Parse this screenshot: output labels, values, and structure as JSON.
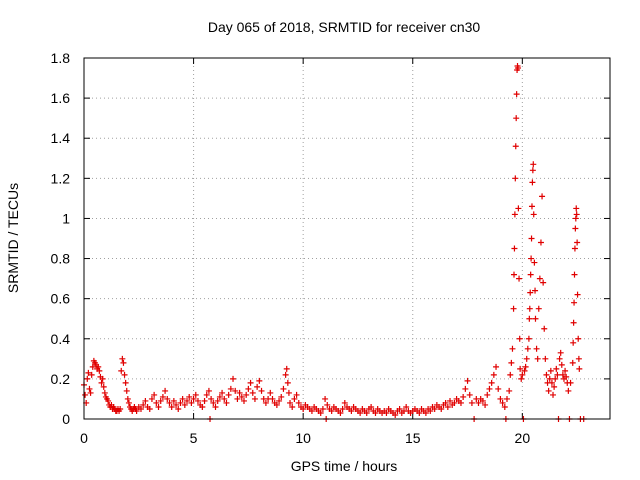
{
  "chart_data": {
    "type": "scatter",
    "title": "Day 065 of 2018, SRMTID for receiver cn30",
    "xlabel": "GPS time / hours",
    "ylabel": "SRMTID / TECUs",
    "xlim": [
      0,
      24
    ],
    "ylim": [
      0,
      1.8
    ],
    "xticks": [
      0,
      5,
      10,
      15,
      20
    ],
    "xtick_labels": [
      "0",
      "5",
      "10",
      "15",
      "20"
    ],
    "yticks": [
      0,
      0.2,
      0.4,
      0.6,
      0.8,
      1,
      1.2,
      1.4,
      1.6,
      1.8
    ],
    "ytick_labels": [
      "0",
      "0.2",
      "0.4",
      "0.6",
      "0.8",
      "1",
      "1.2",
      "1.4",
      "1.6",
      "1.8"
    ],
    "grid": true,
    "marker": "+",
    "marker_color": "#e00000",
    "series": [
      {
        "name": "SRMTID",
        "points": [
          [
            0.0,
            0.17
          ],
          [
            0.05,
            0.12
          ],
          [
            0.1,
            0.08
          ],
          [
            0.15,
            0.2
          ],
          [
            0.2,
            0.23
          ],
          [
            0.25,
            0.15
          ],
          [
            0.3,
            0.13
          ],
          [
            0.35,
            0.22
          ],
          [
            0.4,
            0.26
          ],
          [
            0.45,
            0.29
          ],
          [
            0.5,
            0.28
          ],
          [
            0.55,
            0.27
          ],
          [
            0.6,
            0.25
          ],
          [
            0.65,
            0.26
          ],
          [
            0.7,
            0.24
          ],
          [
            0.75,
            0.21
          ],
          [
            0.8,
            0.18
          ],
          [
            0.85,
            0.2
          ],
          [
            0.9,
            0.16
          ],
          [
            0.95,
            0.13
          ],
          [
            1.0,
            0.11
          ],
          [
            1.05,
            0.1
          ],
          [
            1.1,
            0.09
          ],
          [
            1.15,
            0.07
          ],
          [
            1.2,
            0.06
          ],
          [
            1.25,
            0.07
          ],
          [
            1.3,
            0.05
          ],
          [
            1.35,
            0.06
          ],
          [
            1.4,
            0.05
          ],
          [
            1.45,
            0.04
          ],
          [
            1.5,
            0.04
          ],
          [
            1.55,
            0.05
          ],
          [
            1.6,
            0.04
          ],
          [
            1.65,
            0.05
          ],
          [
            1.7,
            0.24
          ],
          [
            1.75,
            0.3
          ],
          [
            1.8,
            0.28
          ],
          [
            1.85,
            0.22
          ],
          [
            1.9,
            0.18
          ],
          [
            1.95,
            0.14
          ],
          [
            2.0,
            0.1
          ],
          [
            2.05,
            0.08
          ],
          [
            2.1,
            0.06
          ],
          [
            2.15,
            0.05
          ],
          [
            2.2,
            0.04
          ],
          [
            2.25,
            0.05
          ],
          [
            2.3,
            0.06
          ],
          [
            2.35,
            0.05
          ],
          [
            2.4,
            0.04
          ],
          [
            2.5,
            0.06
          ],
          [
            2.6,
            0.05
          ],
          [
            2.7,
            0.07
          ],
          [
            2.8,
            0.09
          ],
          [
            2.9,
            0.06
          ],
          [
            3.0,
            0.05
          ],
          [
            3.1,
            0.1
          ],
          [
            3.2,
            0.12
          ],
          [
            3.3,
            0.08
          ],
          [
            3.4,
            0.06
          ],
          [
            3.5,
            0.09
          ],
          [
            3.6,
            0.11
          ],
          [
            3.7,
            0.14
          ],
          [
            3.8,
            0.1
          ],
          [
            3.9,
            0.08
          ],
          [
            4.0,
            0.06
          ],
          [
            4.1,
            0.09
          ],
          [
            4.2,
            0.07
          ],
          [
            4.3,
            0.05
          ],
          [
            4.4,
            0.08
          ],
          [
            4.5,
            0.1
          ],
          [
            4.6,
            0.07
          ],
          [
            4.7,
            0.09
          ],
          [
            4.8,
            0.11
          ],
          [
            4.9,
            0.08
          ],
          [
            5.0,
            0.1
          ],
          [
            5.1,
            0.12
          ],
          [
            5.2,
            0.09
          ],
          [
            5.3,
            0.07
          ],
          [
            5.4,
            0.06
          ],
          [
            5.5,
            0.09
          ],
          [
            5.6,
            0.12
          ],
          [
            5.7,
            0.14
          ],
          [
            5.75,
            0.0
          ],
          [
            5.8,
            0.1
          ],
          [
            5.9,
            0.08
          ],
          [
            6.0,
            0.06
          ],
          [
            6.1,
            0.09
          ],
          [
            6.2,
            0.11
          ],
          [
            6.3,
            0.13
          ],
          [
            6.4,
            0.1
          ],
          [
            6.5,
            0.08
          ],
          [
            6.6,
            0.12
          ],
          [
            6.7,
            0.15
          ],
          [
            6.8,
            0.2
          ],
          [
            6.9,
            0.14
          ],
          [
            7.0,
            0.1
          ],
          [
            7.1,
            0.13
          ],
          [
            7.2,
            0.11
          ],
          [
            7.3,
            0.09
          ],
          [
            7.4,
            0.12
          ],
          [
            7.5,
            0.15
          ],
          [
            7.6,
            0.18
          ],
          [
            7.7,
            0.13
          ],
          [
            7.8,
            0.1
          ],
          [
            7.9,
            0.16
          ],
          [
            8.0,
            0.19
          ],
          [
            8.1,
            0.14
          ],
          [
            8.2,
            0.1
          ],
          [
            8.3,
            0.08
          ],
          [
            8.4,
            0.1
          ],
          [
            8.5,
            0.13
          ],
          [
            8.6,
            0.1
          ],
          [
            8.7,
            0.08
          ],
          [
            8.8,
            0.07
          ],
          [
            8.9,
            0.09
          ],
          [
            9.0,
            0.11
          ],
          [
            9.1,
            0.15
          ],
          [
            9.2,
            0.22
          ],
          [
            9.25,
            0.25
          ],
          [
            9.3,
            0.18
          ],
          [
            9.35,
            0.13
          ],
          [
            9.4,
            0.08
          ],
          [
            9.5,
            0.06
          ],
          [
            9.6,
            0.1
          ],
          [
            9.7,
            0.12
          ],
          [
            9.8,
            0.08
          ],
          [
            9.9,
            0.06
          ],
          [
            10.0,
            0.05
          ],
          [
            10.1,
            0.07
          ],
          [
            10.2,
            0.06
          ],
          [
            10.3,
            0.05
          ],
          [
            10.4,
            0.04
          ],
          [
            10.5,
            0.06
          ],
          [
            10.6,
            0.05
          ],
          [
            10.7,
            0.04
          ],
          [
            10.8,
            0.03
          ],
          [
            10.9,
            0.05
          ],
          [
            11.0,
            0.1
          ],
          [
            11.05,
            0.0
          ],
          [
            11.1,
            0.07
          ],
          [
            11.2,
            0.05
          ],
          [
            11.3,
            0.04
          ],
          [
            11.4,
            0.06
          ],
          [
            11.5,
            0.05
          ],
          [
            11.6,
            0.04
          ],
          [
            11.7,
            0.03
          ],
          [
            11.8,
            0.05
          ],
          [
            11.9,
            0.08
          ],
          [
            12.0,
            0.06
          ],
          [
            12.1,
            0.05
          ],
          [
            12.2,
            0.04
          ],
          [
            12.3,
            0.06
          ],
          [
            12.4,
            0.05
          ],
          [
            12.5,
            0.04
          ],
          [
            12.6,
            0.03
          ],
          [
            12.7,
            0.05
          ],
          [
            12.8,
            0.04
          ],
          [
            12.9,
            0.03
          ],
          [
            13.0,
            0.05
          ],
          [
            13.1,
            0.06
          ],
          [
            13.2,
            0.04
          ],
          [
            13.3,
            0.03
          ],
          [
            13.4,
            0.05
          ],
          [
            13.5,
            0.04
          ],
          [
            13.6,
            0.03
          ],
          [
            13.7,
            0.04
          ],
          [
            13.8,
            0.03
          ],
          [
            13.9,
            0.05
          ],
          [
            14.0,
            0.04
          ],
          [
            14.1,
            0.03
          ],
          [
            14.2,
            0.02
          ],
          [
            14.3,
            0.04
          ],
          [
            14.4,
            0.05
          ],
          [
            14.5,
            0.03
          ],
          [
            14.6,
            0.04
          ],
          [
            14.7,
            0.06
          ],
          [
            14.8,
            0.04
          ],
          [
            14.9,
            0.03
          ],
          [
            15.0,
            0.04
          ],
          [
            15.1,
            0.05
          ],
          [
            15.2,
            0.04
          ],
          [
            15.3,
            0.03
          ],
          [
            15.4,
            0.05
          ],
          [
            15.5,
            0.04
          ],
          [
            15.6,
            0.03
          ],
          [
            15.7,
            0.05
          ],
          [
            15.8,
            0.04
          ],
          [
            15.9,
            0.06
          ],
          [
            16.0,
            0.05
          ],
          [
            16.1,
            0.07
          ],
          [
            16.2,
            0.06
          ],
          [
            16.3,
            0.05
          ],
          [
            16.4,
            0.07
          ],
          [
            16.5,
            0.08
          ],
          [
            16.6,
            0.06
          ],
          [
            16.7,
            0.09
          ],
          [
            16.8,
            0.07
          ],
          [
            16.9,
            0.08
          ],
          [
            17.0,
            0.1
          ],
          [
            17.1,
            0.09
          ],
          [
            17.2,
            0.08
          ],
          [
            17.3,
            0.11
          ],
          [
            17.4,
            0.15
          ],
          [
            17.5,
            0.19
          ],
          [
            17.6,
            0.12
          ],
          [
            17.7,
            0.08
          ],
          [
            17.8,
            0.0
          ],
          [
            17.9,
            0.1
          ],
          [
            18.0,
            0.08
          ],
          [
            18.1,
            0.1
          ],
          [
            18.2,
            0.09
          ],
          [
            18.3,
            0.07
          ],
          [
            18.4,
            0.12
          ],
          [
            18.5,
            0.15
          ],
          [
            18.6,
            0.18
          ],
          [
            18.7,
            0.22
          ],
          [
            18.8,
            0.26
          ],
          [
            18.9,
            0.15
          ],
          [
            19.0,
            0.1
          ],
          [
            19.1,
            0.08
          ],
          [
            19.2,
            0.06
          ],
          [
            19.25,
            0.0
          ],
          [
            19.3,
            0.1
          ],
          [
            19.4,
            0.14
          ],
          [
            19.45,
            0.22
          ],
          [
            19.5,
            0.28
          ],
          [
            19.55,
            0.35
          ],
          [
            19.6,
            0.55
          ],
          [
            19.62,
            0.72
          ],
          [
            19.64,
            0.85
          ],
          [
            19.66,
            1.02
          ],
          [
            19.68,
            1.2
          ],
          [
            19.7,
            1.36
          ],
          [
            19.72,
            1.5
          ],
          [
            19.74,
            1.62
          ],
          [
            19.76,
            1.74
          ],
          [
            19.78,
            1.76
          ],
          [
            19.8,
            1.75
          ],
          [
            19.82,
            1.05
          ],
          [
            19.85,
            0.7
          ],
          [
            19.88,
            0.4
          ],
          [
            19.9,
            0.25
          ],
          [
            19.95,
            0.2
          ],
          [
            20.0,
            0.22
          ],
          [
            20.05,
            0.0
          ],
          [
            20.1,
            0.24
          ],
          [
            20.15,
            0.26
          ],
          [
            20.2,
            0.3
          ],
          [
            20.25,
            0.35
          ],
          [
            20.3,
            0.4
          ],
          [
            20.32,
            0.5
          ],
          [
            20.34,
            0.55
          ],
          [
            20.36,
            0.63
          ],
          [
            20.38,
            0.72
          ],
          [
            20.4,
            0.8
          ],
          [
            20.42,
            0.9
          ],
          [
            20.44,
            1.06
          ],
          [
            20.46,
            1.18
          ],
          [
            20.48,
            1.24
          ],
          [
            20.5,
            1.27
          ],
          [
            20.52,
            1.02
          ],
          [
            20.55,
            0.78
          ],
          [
            20.58,
            0.64
          ],
          [
            20.6,
            0.5
          ],
          [
            20.65,
            0.35
          ],
          [
            20.7,
            0.3
          ],
          [
            20.75,
            0.55
          ],
          [
            20.8,
            0.7
          ],
          [
            20.85,
            0.88
          ],
          [
            20.9,
            1.11
          ],
          [
            20.95,
            0.68
          ],
          [
            21.0,
            0.45
          ],
          [
            21.05,
            0.3
          ],
          [
            21.1,
            0.22
          ],
          [
            21.15,
            0.18
          ],
          [
            21.2,
            0.14
          ],
          [
            21.25,
            0.2
          ],
          [
            21.3,
            0.24
          ],
          [
            21.35,
            0.18
          ],
          [
            21.4,
            0.12
          ],
          [
            21.45,
            0.16
          ],
          [
            21.5,
            0.2
          ],
          [
            21.55,
            0.25
          ],
          [
            21.6,
            0.22
          ],
          [
            21.65,
            0.0
          ],
          [
            21.7,
            0.3
          ],
          [
            21.75,
            0.33
          ],
          [
            21.8,
            0.27
          ],
          [
            21.85,
            0.22
          ],
          [
            21.9,
            0.2
          ],
          [
            21.95,
            0.24
          ],
          [
            22.0,
            0.21
          ],
          [
            22.05,
            0.18
          ],
          [
            22.1,
            0.14
          ],
          [
            22.15,
            0.0
          ],
          [
            22.2,
            0.18
          ],
          [
            22.3,
            0.28
          ],
          [
            22.32,
            0.38
          ],
          [
            22.34,
            0.48
          ],
          [
            22.36,
            0.58
          ],
          [
            22.38,
            0.72
          ],
          [
            22.4,
            0.85
          ],
          [
            22.42,
            0.95
          ],
          [
            22.44,
            1.0
          ],
          [
            22.46,
            1.05
          ],
          [
            22.48,
            1.02
          ],
          [
            22.5,
            0.88
          ],
          [
            22.52,
            0.62
          ],
          [
            22.55,
            0.4
          ],
          [
            22.58,
            0.3
          ],
          [
            22.6,
            0.25
          ],
          [
            22.65,
            0.0
          ],
          [
            22.8,
            0.0
          ]
        ]
      }
    ]
  }
}
